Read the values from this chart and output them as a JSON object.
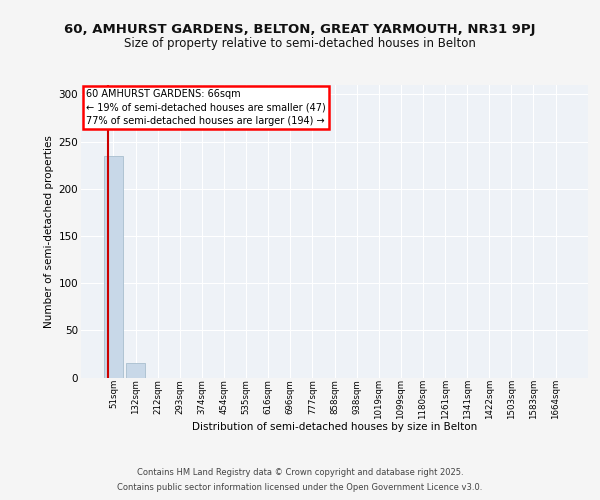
{
  "title": "60, AMHURST GARDENS, BELTON, GREAT YARMOUTH, NR31 9PJ",
  "subtitle": "Size of property relative to semi-detached houses in Belton",
  "xlabel": "Distribution of semi-detached houses by size in Belton",
  "ylabel": "Number of semi-detached properties",
  "categories": [
    "51sqm",
    "132sqm",
    "212sqm",
    "293sqm",
    "374sqm",
    "454sqm",
    "535sqm",
    "616sqm",
    "696sqm",
    "777sqm",
    "858sqm",
    "938sqm",
    "1019sqm",
    "1099sqm",
    "1180sqm",
    "1261sqm",
    "1341sqm",
    "1422sqm",
    "1503sqm",
    "1583sqm",
    "1664sqm"
  ],
  "values": [
    235,
    15,
    0,
    0,
    0,
    0,
    0,
    0,
    0,
    0,
    0,
    0,
    0,
    0,
    0,
    0,
    0,
    0,
    0,
    0,
    0
  ],
  "bar_color": "#c8d8e8",
  "bar_edge_color": "#a8bece",
  "annotation_title": "60 AMHURST GARDENS: 66sqm",
  "annotation_line1": "← 19% of semi-detached houses are smaller (47)",
  "annotation_line2": "77% of semi-detached houses are larger (194) →",
  "property_line_color": "#cc0000",
  "ylim": [
    0,
    310
  ],
  "yticks": [
    0,
    50,
    100,
    150,
    200,
    250,
    300
  ],
  "plot_bg_color": "#eef2f7",
  "fig_bg_color": "#f5f5f5",
  "grid_color": "#ffffff",
  "footer_line1": "Contains HM Land Registry data © Crown copyright and database right 2025.",
  "footer_line2": "Contains public sector information licensed under the Open Government Licence v3.0."
}
